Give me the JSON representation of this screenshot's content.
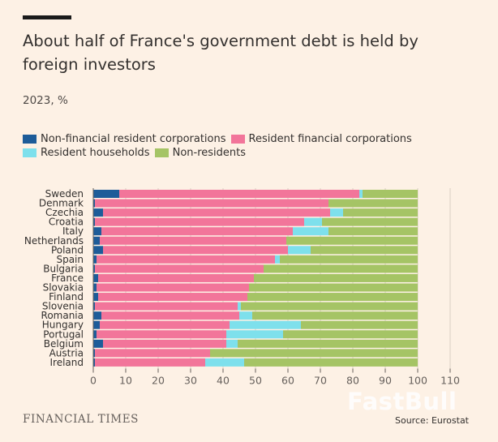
{
  "header": {
    "title": "About half of France's government debt is held by foreign investors",
    "subtitle": "2023, %"
  },
  "footer": {
    "brand": "FINANCIAL TIMES",
    "source": "Source: Eurostat",
    "watermark": "FastBull"
  },
  "colors": {
    "nfc": "#1d5c99",
    "rfc": "#f2759a",
    "hh": "#7ee0ec",
    "nr": "#a5c465",
    "grid": "#d9cec2",
    "axis": "#66605c"
  },
  "chart_data": {
    "type": "bar",
    "orientation": "horizontal",
    "stacked": true,
    "title": "About half of France's government debt is held by foreign investors",
    "subtitle": "2023, %",
    "xlabel": "",
    "ylabel": "",
    "xlim": [
      0,
      110
    ],
    "xticks": [
      0,
      10,
      20,
      30,
      40,
      50,
      60,
      70,
      80,
      90,
      100,
      110
    ],
    "grid": true,
    "legend_position": "top-left",
    "categories": [
      "Sweden",
      "Denmark",
      "Czechia",
      "Croatia",
      "Italy",
      "Netherlands",
      "Poland",
      "Spain",
      "Bulgaria",
      "France",
      "Slovakia",
      "Finland",
      "Slovenia",
      "Romania",
      "Hungary",
      "Portugal",
      "Belgium",
      "Austria",
      "Ireland"
    ],
    "series": [
      {
        "name": "Non-financial resident corporations",
        "color_key": "nfc",
        "values": [
          8,
          0.5,
          3,
          0.5,
          2.5,
          2,
          3,
          1,
          0.5,
          1.5,
          1,
          1.5,
          0.5,
          2.5,
          2,
          1,
          3,
          0.5,
          0.5
        ]
      },
      {
        "name": "Resident financial corporations",
        "color_key": "rfc",
        "values": [
          74,
          72,
          70,
          64.5,
          59,
          57.5,
          57,
          55,
          52,
          48,
          47,
          46,
          44,
          42.5,
          40,
          40,
          38,
          35.5,
          34
        ]
      },
      {
        "name": "Resident households",
        "color_key": "hh",
        "values": [
          1,
          0,
          4,
          5.5,
          11,
          0,
          7,
          1.5,
          0,
          0,
          0,
          0,
          1,
          4,
          22,
          17.5,
          3.5,
          0,
          12
        ]
      },
      {
        "name": "Non-residents",
        "color_key": "nr",
        "values": [
          17,
          27.5,
          23,
          29.5,
          27.5,
          40.5,
          33,
          42.5,
          47.5,
          50.5,
          52,
          52.5,
          54.5,
          51,
          36,
          41.5,
          55.5,
          64,
          53.5
        ]
      }
    ]
  }
}
